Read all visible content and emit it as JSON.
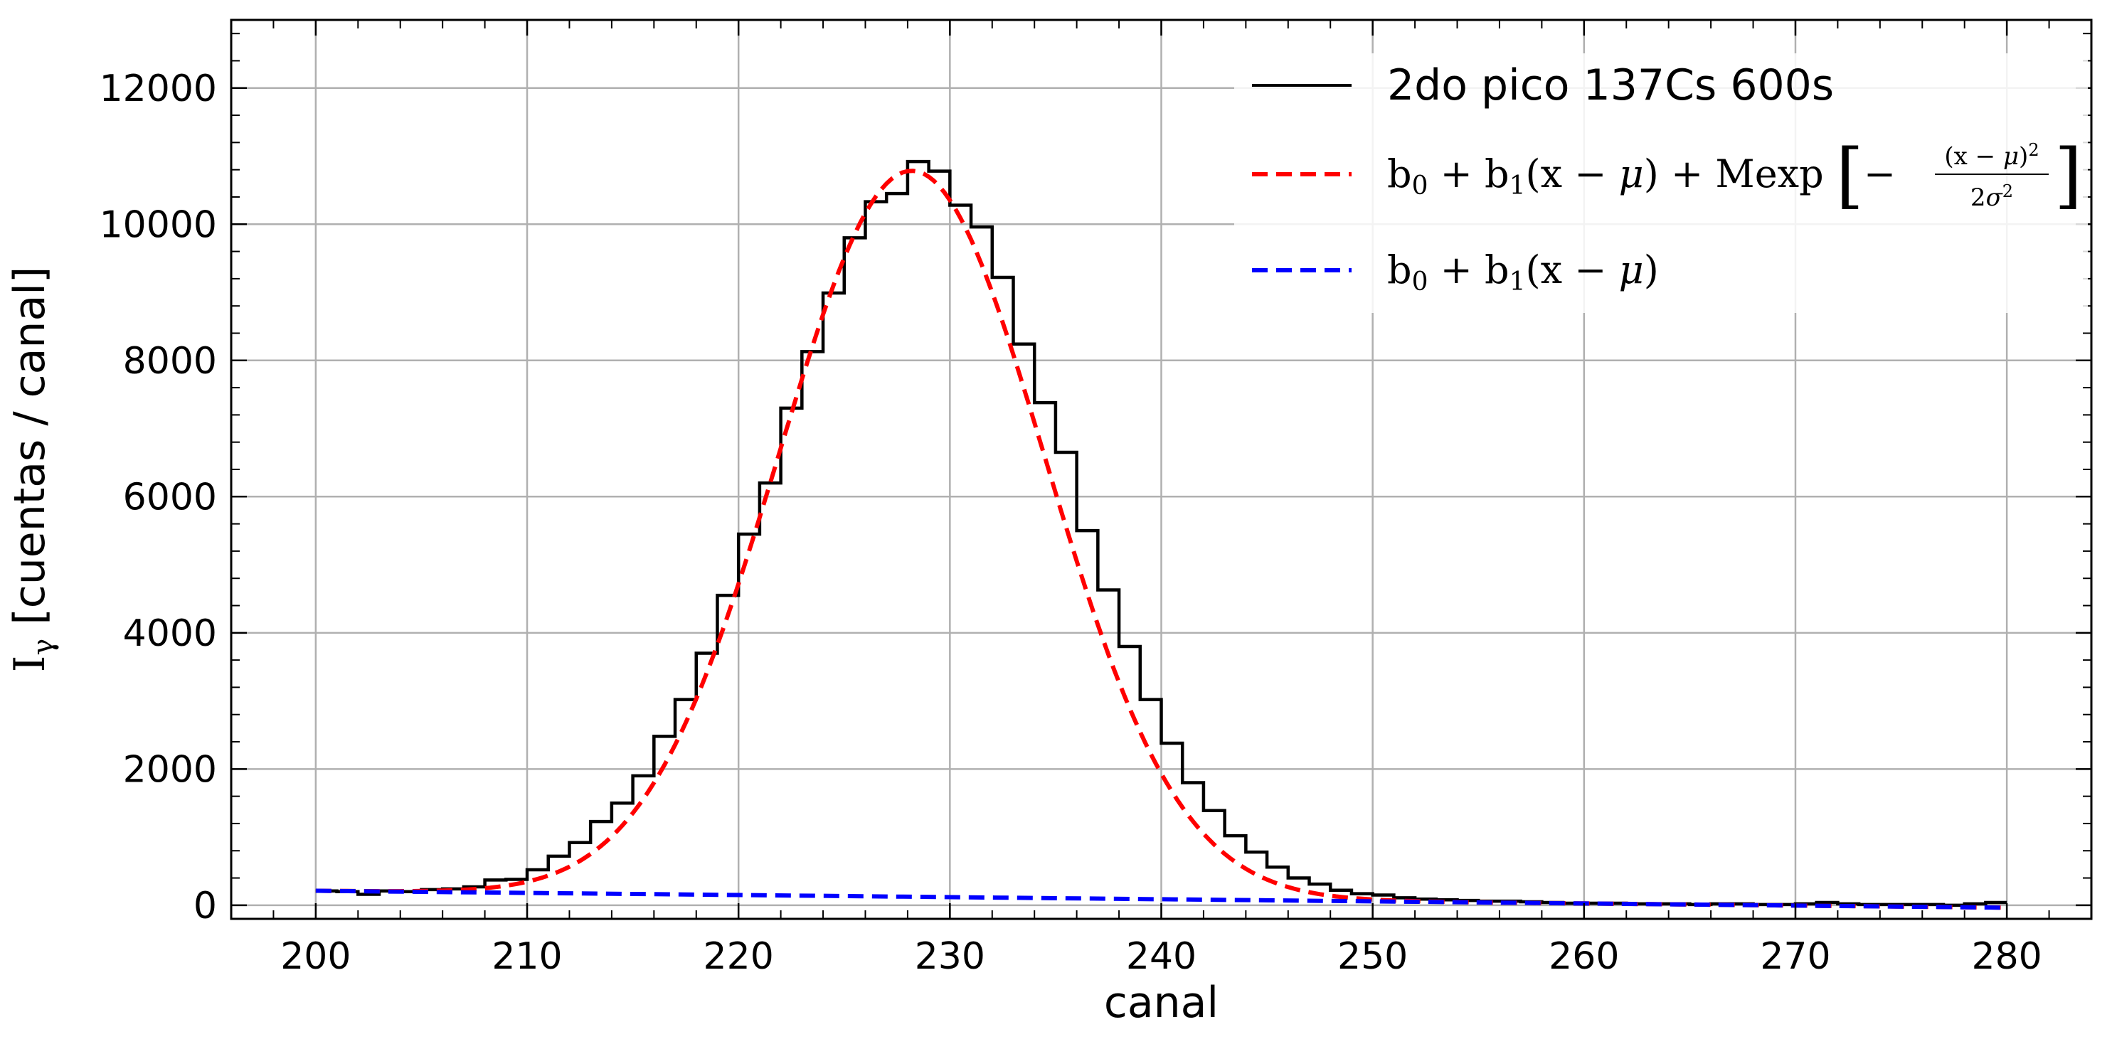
{
  "chart_data": {
    "type": "line",
    "xlabel": "canal",
    "ylabel_main": "I",
    "ylabel_sub": "γ",
    "ylabel_rest": " [cuentas / canal]",
    "xlim": [
      196,
      284
    ],
    "ylim": [
      -200,
      13000
    ],
    "xticks": [
      200,
      210,
      220,
      230,
      240,
      250,
      260,
      270,
      280
    ],
    "yticks": [
      0,
      2000,
      4000,
      6000,
      8000,
      10000,
      12000
    ],
    "grid": true,
    "legend_position": "top-right",
    "series": [
      {
        "name": "2do pico 137Cs 600s",
        "style": "step",
        "color": "#000000",
        "bin_width": 1,
        "x": [
          200,
          201,
          202,
          203,
          204,
          205,
          206,
          207,
          208,
          209,
          210,
          211,
          212,
          213,
          214,
          215,
          216,
          217,
          218,
          219,
          220,
          221,
          222,
          223,
          224,
          225,
          226,
          227,
          228,
          229,
          230,
          231,
          232,
          233,
          234,
          235,
          236,
          237,
          238,
          239,
          240,
          241,
          242,
          243,
          244,
          245,
          246,
          247,
          248,
          249,
          250,
          251,
          252,
          253,
          254,
          255,
          256,
          257,
          258,
          259,
          260,
          261,
          262,
          263,
          264,
          265,
          266,
          267,
          268,
          269,
          270,
          271,
          272,
          273,
          274,
          275,
          276,
          277,
          278,
          279
        ],
        "y": [
          210,
          200,
          160,
          210,
          200,
          230,
          240,
          270,
          370,
          380,
          520,
          720,
          920,
          1230,
          1500,
          1900,
          2480,
          3020,
          3700,
          4550,
          5450,
          6200,
          7300,
          8130,
          8990,
          9800,
          10330,
          10450,
          10920,
          10780,
          10280,
          9960,
          9220,
          8240,
          7380,
          6650,
          5500,
          4630,
          3800,
          3020,
          2380,
          1800,
          1390,
          1020,
          780,
          560,
          400,
          310,
          220,
          170,
          150,
          110,
          90,
          80,
          70,
          60,
          60,
          50,
          40,
          30,
          30,
          30,
          20,
          20,
          20,
          10,
          20,
          20,
          10,
          10,
          20,
          40,
          20,
          10,
          10,
          10,
          10,
          0,
          20,
          40
        ]
      },
      {
        "name": "b0 + b1(x − μ) + Mexp[−(x−μ)²/2σ²]",
        "style": "dashed",
        "color": "#ff0000",
        "b0": 125,
        "b1": -3.1,
        "mu": 228.2,
        "M": 10660,
        "sigma": 6.3
      },
      {
        "name": "b0 + b1(x − μ)",
        "style": "dashed",
        "color": "#0000ff",
        "x": [
          200,
          280
        ],
        "y": [
          212,
          -36
        ]
      }
    ]
  }
}
